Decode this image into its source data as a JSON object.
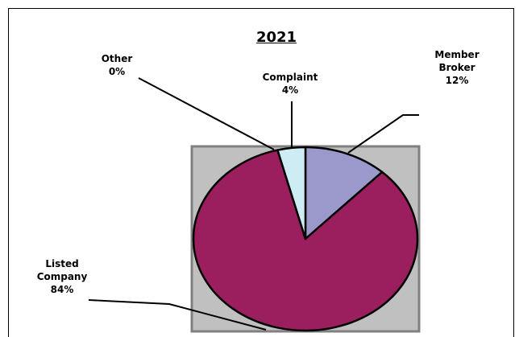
{
  "chart_data": {
    "type": "pie",
    "title": "2021",
    "categories": [
      "Member Broker",
      "Listed Company",
      "Other",
      "Complaint"
    ],
    "values": [
      12,
      84,
      0,
      4
    ],
    "value_labels": [
      "12%",
      "84%",
      "0%",
      "4%"
    ],
    "colors": [
      "#9b98cc",
      "#9b1f5e",
      "#ffffff",
      "#cdecf4"
    ]
  }
}
